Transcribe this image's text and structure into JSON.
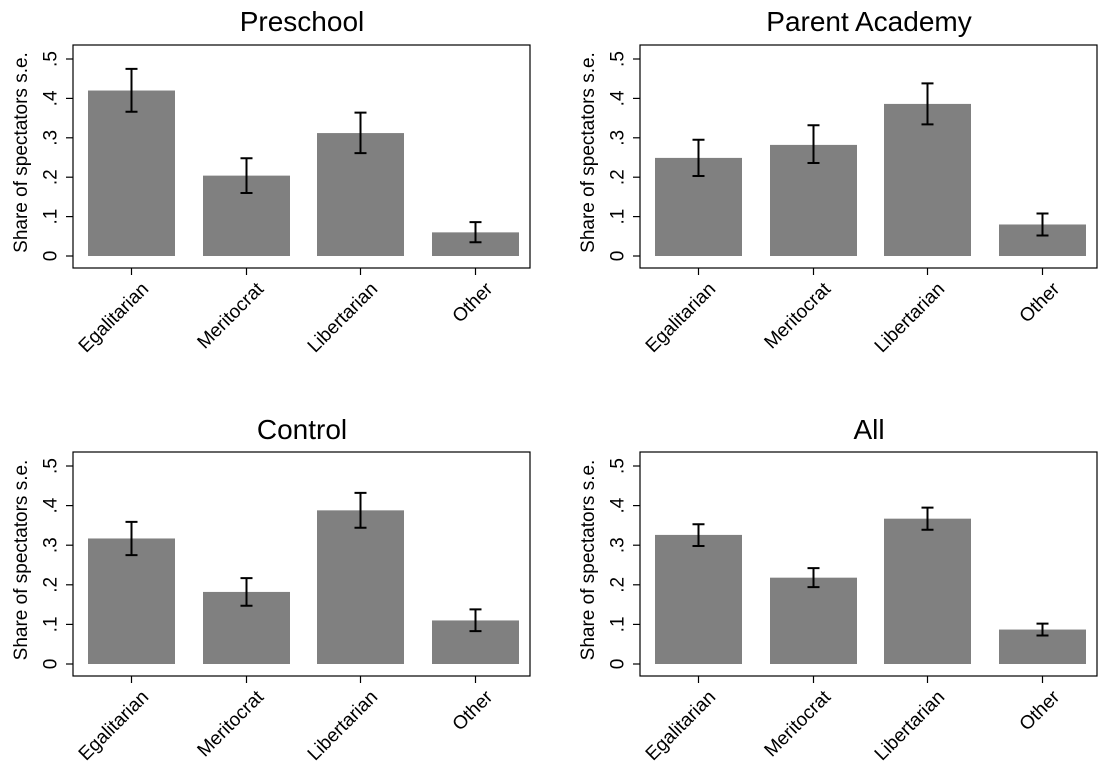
{
  "chart_data": [
    {
      "type": "bar",
      "title": "Preschool",
      "ylabel": "Share of spectators  s.e.",
      "categories": [
        "Egalitarian",
        "Meritocrat",
        "Libertarian",
        "Other"
      ],
      "values": [
        0.42,
        0.204,
        0.312,
        0.06
      ],
      "error_low": [
        0.366,
        0.16,
        0.261,
        0.035
      ],
      "error_high": [
        0.475,
        0.248,
        0.364,
        0.086
      ],
      "ylim": [
        0,
        0.5
      ],
      "yticks": [
        0,
        0.1,
        0.2,
        0.3,
        0.4,
        0.5
      ],
      "yticklabels": [
        "0",
        ".1",
        ".2",
        ".3",
        ".4",
        ".5"
      ],
      "bar_color": "#808080",
      "grid": false
    },
    {
      "type": "bar",
      "title": "Parent Academy",
      "ylabel": "Share of spectators  s.e.",
      "categories": [
        "Egalitarian",
        "Meritocrat",
        "Libertarian",
        "Other"
      ],
      "values": [
        0.249,
        0.282,
        0.386,
        0.08
      ],
      "error_low": [
        0.203,
        0.236,
        0.334,
        0.052
      ],
      "error_high": [
        0.295,
        0.332,
        0.438,
        0.108
      ],
      "ylim": [
        0,
        0.5
      ],
      "yticks": [
        0,
        0.1,
        0.2,
        0.3,
        0.4,
        0.5
      ],
      "yticklabels": [
        "0",
        ".1",
        ".2",
        ".3",
        ".4",
        ".5"
      ],
      "bar_color": "#808080",
      "grid": false
    },
    {
      "type": "bar",
      "title": "Control",
      "ylabel": "Share of spectators  s.e.",
      "categories": [
        "Egalitarian",
        "Meritocrat",
        "Libertarian",
        "Other"
      ],
      "values": [
        0.317,
        0.182,
        0.388,
        0.11
      ],
      "error_low": [
        0.275,
        0.147,
        0.344,
        0.083
      ],
      "error_high": [
        0.359,
        0.217,
        0.432,
        0.138
      ],
      "ylim": [
        0,
        0.5
      ],
      "yticks": [
        0,
        0.1,
        0.2,
        0.3,
        0.4,
        0.5
      ],
      "yticklabels": [
        "0",
        ".1",
        ".2",
        ".3",
        ".4",
        ".5"
      ],
      "bar_color": "#808080",
      "grid": false
    },
    {
      "type": "bar",
      "title": "All",
      "ylabel": "Share of spectators  s.e.",
      "categories": [
        "Egalitarian",
        "Meritocrat",
        "Libertarian",
        "Other"
      ],
      "values": [
        0.326,
        0.218,
        0.367,
        0.087
      ],
      "error_low": [
        0.298,
        0.194,
        0.339,
        0.072
      ],
      "error_high": [
        0.353,
        0.242,
        0.395,
        0.102
      ],
      "ylim": [
        0,
        0.5
      ],
      "yticks": [
        0,
        0.1,
        0.2,
        0.3,
        0.4,
        0.5
      ],
      "yticklabels": [
        "0",
        ".1",
        ".2",
        ".3",
        ".4",
        ".5"
      ],
      "bar_color": "#808080",
      "grid": false
    }
  ]
}
